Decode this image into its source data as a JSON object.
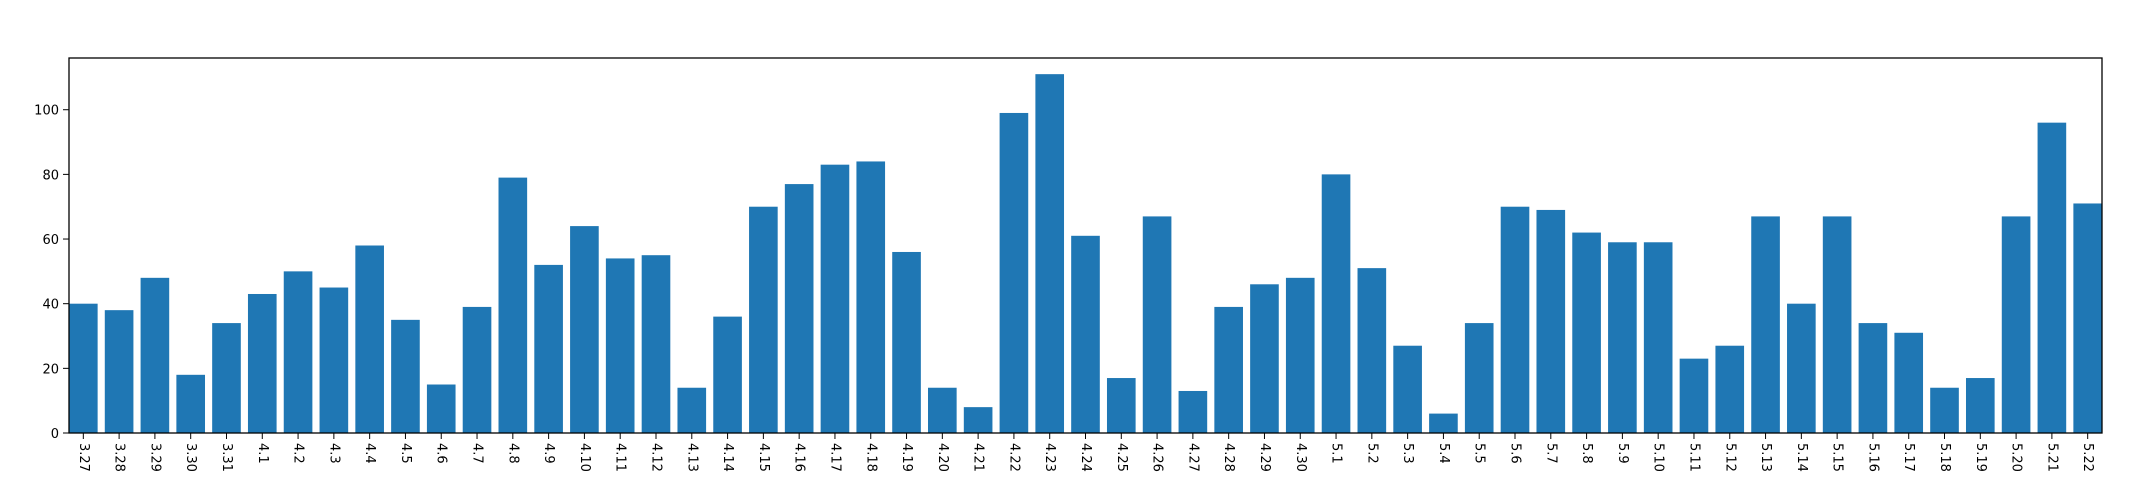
{
  "chart_data": {
    "type": "bar",
    "title": "",
    "xlabel": "",
    "ylabel": "",
    "ylim": [
      0,
      116
    ],
    "yticks": [
      0,
      20,
      40,
      60,
      80,
      100
    ],
    "grid": false,
    "bar_color": "#1f77b4",
    "categories": [
      "3.27",
      "3.28",
      "3.29",
      "3.30",
      "3.31",
      "4.1",
      "4.2",
      "4.3",
      "4.4",
      "4.5",
      "4.6",
      "4.7",
      "4.8",
      "4.9",
      "4.10",
      "4.11",
      "4.12",
      "4.13",
      "4.14",
      "4.15",
      "4.16",
      "4.17",
      "4.18",
      "4.19",
      "4.20",
      "4.21",
      "4.22",
      "4.23",
      "4.24",
      "4.25",
      "4.26",
      "4.27",
      "4.28",
      "4.29",
      "4.30",
      "5.1",
      "5.2",
      "5.3",
      "5.4",
      "5.5",
      "5.6",
      "5.7",
      "5.8",
      "5.9",
      "5.10",
      "5.11",
      "5.12",
      "5.13",
      "5.14",
      "5.15",
      "5.16",
      "5.17",
      "5.18",
      "5.19",
      "5.20",
      "5.21",
      "5.22"
    ],
    "values": [
      40,
      38,
      48,
      18,
      34,
      43,
      50,
      45,
      58,
      35,
      15,
      39,
      79,
      52,
      64,
      54,
      55,
      14,
      36,
      70,
      77,
      83,
      84,
      56,
      14,
      8,
      99,
      111,
      61,
      17,
      67,
      13,
      39,
      46,
      48,
      80,
      51,
      27,
      6,
      34,
      70,
      69,
      62,
      59,
      59,
      23,
      27,
      67,
      40,
      67,
      34,
      31,
      14,
      17,
      67,
      96,
      71
    ]
  }
}
